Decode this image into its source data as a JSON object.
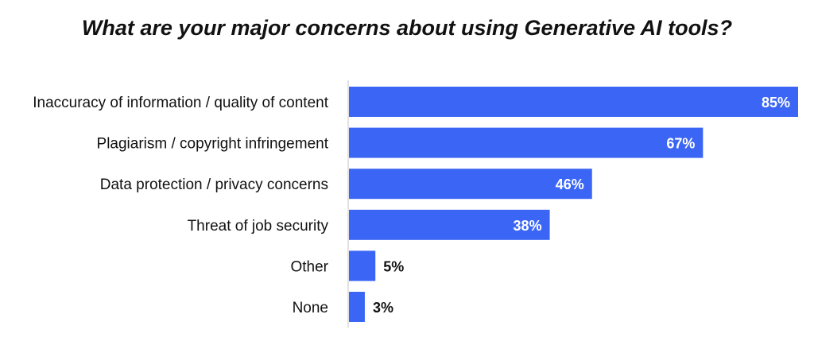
{
  "chart_data": {
    "type": "bar",
    "orientation": "horizontal",
    "title": "What are your major concerns about using Generative AI tools?",
    "categories": [
      "Inaccuracy of information / quality of content",
      "Plagiarism / copyright infringement",
      "Data protection / privacy concerns",
      "Threat of job security",
      "Other",
      "None"
    ],
    "values": [
      85,
      67,
      46,
      38,
      5,
      3
    ],
    "data_labels": [
      "85%",
      "67%",
      "46%",
      "38%",
      "5%",
      "3%"
    ],
    "unit": "%",
    "xlim": [
      0,
      85
    ],
    "grid": false,
    "legend": "none",
    "bar_color": "#3b66f5"
  }
}
